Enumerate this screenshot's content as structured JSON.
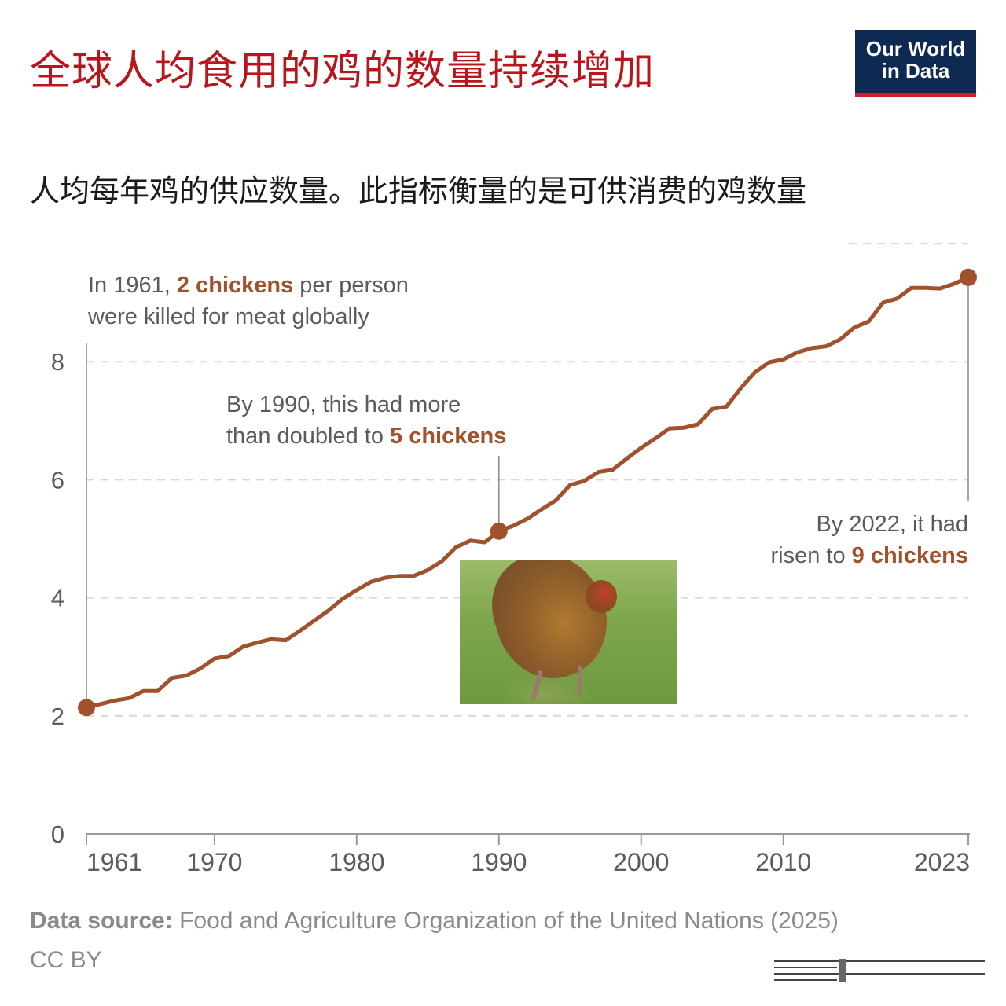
{
  "header": {
    "title": "全球人均食用的鸡的数量持续增加",
    "logo_line1": "Our World",
    "logo_line2": "in Data"
  },
  "subtitle": "人均每年鸡的供应数量。此指标衡量的是可供消费的鸡数量",
  "annotations": {
    "a1961": {
      "pre": "In 1961, ",
      "bold": "2 chickens",
      "post": " per person",
      "line2": "were killed for meat globally"
    },
    "a1990": {
      "line1": "By 1990, this had more",
      "pre": "than doubled to ",
      "bold": "5 chickens"
    },
    "a2022": {
      "line1": "By 2022, it had",
      "pre": "risen to ",
      "bold": "9 chickens"
    }
  },
  "footer": {
    "source_label": "Data source:",
    "source_text": " Food and Agriculture Organization of the United Nations (2025)",
    "license": "CC BY"
  },
  "colors": {
    "line": "#a0522d",
    "title": "#b8161c",
    "logo_bg": "#0f2a52",
    "logo_bar": "#d0202a",
    "grid": "#d8d8d8"
  },
  "chart_data": {
    "type": "line",
    "title": "全球人均食用的鸡的数量持续增加",
    "subtitle": "人均每年鸡的供应数量。此指标衡量的是可供消费的鸡数量",
    "xlabel": "",
    "ylabel": "",
    "xlim": [
      1961,
      2023
    ],
    "ylim": [
      0,
      9.5
    ],
    "yticks": [
      0,
      2,
      4,
      6,
      8
    ],
    "xticks": [
      1961,
      1970,
      1980,
      1990,
      2000,
      2010,
      2023
    ],
    "grid": "horizontal dashed",
    "highlighted_points": [
      1961,
      1990,
      2023
    ],
    "x": [
      1961,
      1962,
      1963,
      1964,
      1965,
      1966,
      1967,
      1968,
      1969,
      1970,
      1971,
      1972,
      1973,
      1974,
      1975,
      1976,
      1977,
      1978,
      1979,
      1980,
      1981,
      1982,
      1983,
      1984,
      1985,
      1986,
      1987,
      1988,
      1989,
      1990,
      1991,
      1992,
      1993,
      1994,
      1995,
      1996,
      1997,
      1998,
      1999,
      2000,
      2001,
      2002,
      2003,
      2004,
      2005,
      2006,
      2007,
      2008,
      2009,
      2010,
      2011,
      2012,
      2013,
      2014,
      2015,
      2016,
      2017,
      2018,
      2019,
      2020,
      2021,
      2022,
      2023
    ],
    "values": [
      2.14,
      2.2,
      2.26,
      2.3,
      2.42,
      2.42,
      2.64,
      2.68,
      2.8,
      2.97,
      3.01,
      3.17,
      3.24,
      3.3,
      3.28,
      3.44,
      3.61,
      3.78,
      3.98,
      4.13,
      4.27,
      4.34,
      4.37,
      4.37,
      4.47,
      4.62,
      4.86,
      4.97,
      4.94,
      5.13,
      5.22,
      5.34,
      5.5,
      5.65,
      5.91,
      5.98,
      6.13,
      6.17,
      6.36,
      6.54,
      6.7,
      6.87,
      6.88,
      6.94,
      7.2,
      7.24,
      7.55,
      7.82,
      7.99,
      8.04,
      8.16,
      8.23,
      8.26,
      8.38,
      8.58,
      8.68,
      9.0,
      9.07,
      9.25,
      9.25,
      9.24,
      9.32,
      9.43
    ]
  }
}
